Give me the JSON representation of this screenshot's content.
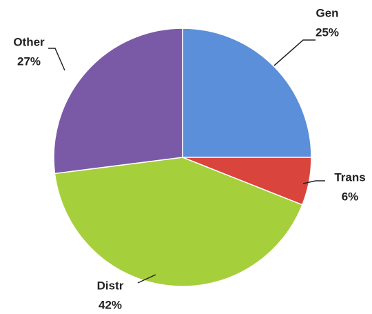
{
  "chart_data": {
    "type": "pie",
    "categories": [
      "Gen",
      "Trans",
      "Distr",
      "Other"
    ],
    "values": [
      25,
      6,
      42,
      27
    ],
    "value_labels": [
      "25%",
      "6%",
      "42%",
      "27%"
    ],
    "colors": [
      "#5b8fd9",
      "#d9453c",
      "#a6cf3c",
      "#7a5aa6"
    ]
  }
}
